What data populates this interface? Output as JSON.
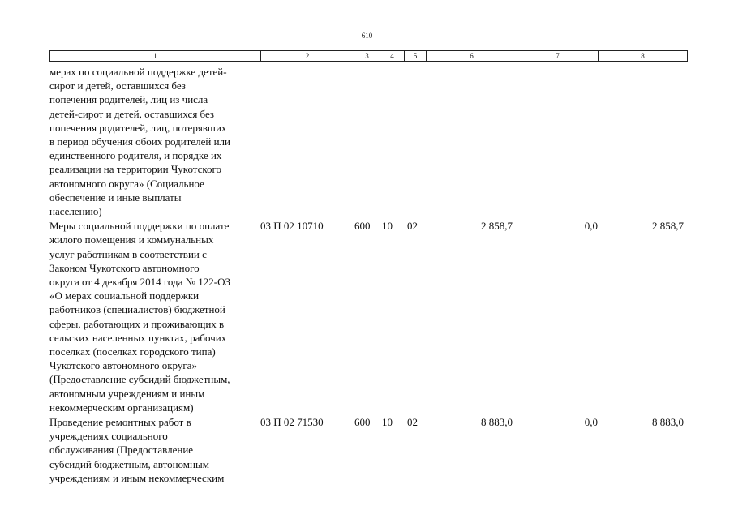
{
  "page_number": "610",
  "table": {
    "header": [
      "1",
      "2",
      "3",
      "4",
      "5",
      "6",
      "7",
      "8"
    ],
    "rows": [
      {
        "text": [
          "мерах по социальной поддержке детей-",
          "сирот и детей, оставшихся без",
          "попечения родителей, лиц из числа",
          "детей-сирот и детей, оставшихся без",
          "попечения родителей, лиц, потерявших",
          "в период обучения обоих родителей или",
          "единственного родителя, и порядке их",
          "реализации на территории Чукотского",
          "автономного округа» (Социальное",
          "обеспечение и иные выплаты",
          "населению)"
        ]
      },
      {
        "text": [
          "Меры социальной поддержки по оплате",
          "жилого помещения и коммунальных",
          "услуг работникам в соответствии с",
          "Законом Чукотского автономного",
          "округа от 4 декабря 2014 года № 122-ОЗ",
          "«О мерах социальной поддержки",
          "работников (специалистов) бюджетной",
          "сферы, работающих и проживающих в",
          "сельских населенных пунктах, рабочих",
          "поселках (поселках городского типа)",
          "Чукотского автономного округа»",
          "(Предоставление субсидий бюджетным,",
          "автономным учреждениям и иным",
          "некоммерческим организациям)"
        ],
        "cells": [
          "03 П 02 10710",
          "600",
          "10",
          "02",
          "2 858,7",
          "0,0",
          "2 858,7"
        ]
      },
      {
        "text": [
          "Проведение ремонтных работ в",
          "учреждениях социального",
          "обслуживания (Предоставление",
          "субсидий бюджетным, автономным",
          "учреждениям и иным некоммерческим"
        ],
        "cells": [
          "03 П 02 71530",
          "600",
          "10",
          "02",
          "8 883,0",
          "0,0",
          "8 883,0"
        ]
      }
    ]
  }
}
